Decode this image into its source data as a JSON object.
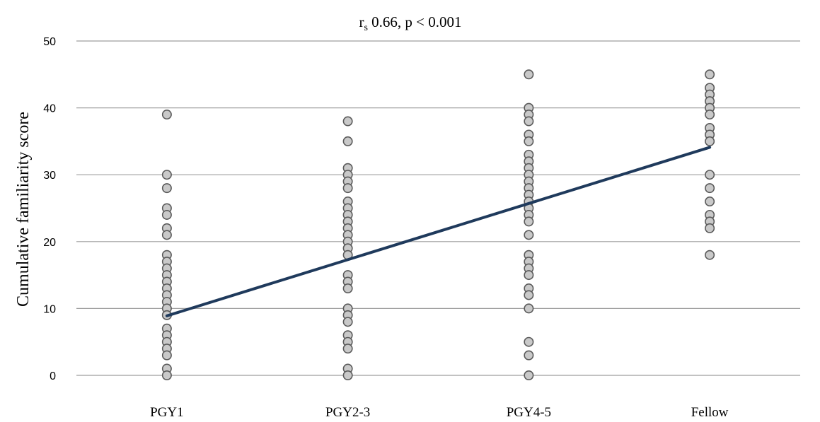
{
  "chart_data": {
    "type": "scatter",
    "title_r": "r",
    "title_sub": "s",
    "title_rest": " 0.66, p < 0.001",
    "ylabel": "Cumulative familiarity score",
    "xlabel": "",
    "categories": [
      "PGY1",
      "PGY2-3",
      "PGY4-5",
      "Fellow"
    ],
    "ylim": [
      0,
      50
    ],
    "yticks": [
      0,
      10,
      20,
      30,
      40,
      50
    ],
    "grid": true,
    "points": [
      [
        39,
        30,
        28,
        25,
        24,
        22,
        21,
        18,
        17,
        16,
        15,
        14,
        13,
        12,
        11,
        10,
        9,
        9,
        7,
        6,
        5,
        4,
        3,
        1,
        0
      ],
      [
        38,
        35,
        31,
        30,
        29,
        28,
        26,
        25,
        24,
        23,
        22,
        21,
        20,
        19,
        18,
        15,
        14,
        13,
        10,
        9,
        8,
        6,
        5,
        4,
        1,
        0
      ],
      [
        45,
        40,
        39,
        38,
        36,
        35,
        33,
        32,
        31,
        30,
        29,
        28,
        27,
        26,
        25,
        24,
        23,
        21,
        18,
        17,
        16,
        15,
        13,
        12,
        10,
        5,
        3,
        0
      ],
      [
        45,
        43,
        42,
        41,
        40,
        39,
        37,
        36,
        35,
        30,
        28,
        26,
        24,
        23,
        22,
        18
      ]
    ],
    "trend": {
      "from": {
        "x": "PGY1",
        "y": 8.9
      },
      "to": {
        "x": "Fellow",
        "y": 34.1
      }
    }
  }
}
